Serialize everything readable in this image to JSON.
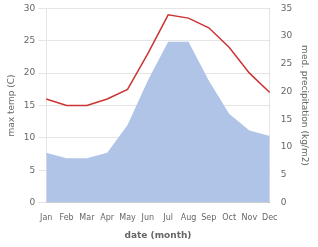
{
  "chart_data": {
    "type": "line",
    "xlabel": "date (month)",
    "ylabel": "max temp (C)",
    "y2label": "med. precipitation (kg/m2)",
    "categories": [
      "Jan",
      "Feb",
      "Mar",
      "Apr",
      "May",
      "Jun",
      "Jul",
      "Aug",
      "Sep",
      "Oct",
      "Nov",
      "Dec"
    ],
    "series": [
      {
        "type": "area",
        "color": "#b0c4e8",
        "axis": "y2",
        "values": [
          9,
          8,
          8,
          9,
          14,
          22,
          29,
          29,
          22,
          16,
          13,
          12
        ]
      },
      {
        "type": "line",
        "color": "#cc3333",
        "values": [
          16,
          15,
          15,
          16,
          17.5,
          23,
          29,
          28.5,
          27,
          24,
          20,
          17
        ]
      }
    ],
    "ylim": [
      0,
      30
    ],
    "yticks": [
      0,
      5,
      10,
      15,
      20,
      25,
      30
    ],
    "y2lim": [
      0,
      35
    ],
    "y2ticks": [
      0,
      5,
      10,
      15,
      20,
      25,
      30,
      35
    ],
    "grid": true
  }
}
